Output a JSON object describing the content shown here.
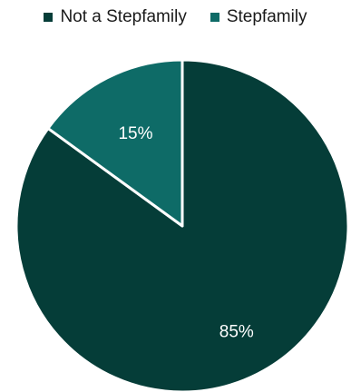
{
  "chart_data": {
    "type": "pie",
    "title": "",
    "legend_position": "top",
    "slices": [
      {
        "name": "Not a Stepfamily",
        "value": 85,
        "label": "85%",
        "color": "#053D38"
      },
      {
        "name": "Stepfamily",
        "value": 15,
        "label": "15%",
        "color": "#0E6B67"
      }
    ],
    "start_angle_deg": 0,
    "direction": "clockwise",
    "slice_border_color": "#ffffff"
  }
}
